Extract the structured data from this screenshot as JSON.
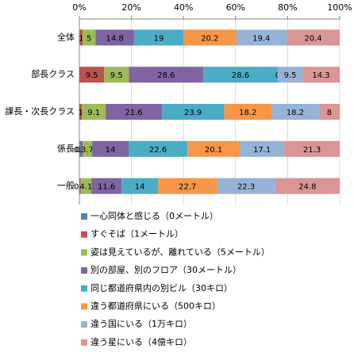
{
  "chart_data": {
    "type": "stacked_barh",
    "categories": [
      "全体",
      "部長クラス",
      "課長・次長クラス",
      "係長",
      "一般"
    ],
    "xlim": [
      0,
      100
    ],
    "xticks": [
      {
        "value": 0,
        "label": "0%"
      },
      {
        "value": 20,
        "label": "20%"
      },
      {
        "value": 40,
        "label": "40%"
      },
      {
        "value": 60,
        "label": "60%"
      },
      {
        "value": 80,
        "label": "80%"
      },
      {
        "value": 100,
        "label": "100%"
      }
    ],
    "grid": true,
    "series": [
      {
        "name": "一心同体と感じる（0メートル）",
        "color": "#4f81bd",
        "values": [
          0.2,
          0,
          0,
          0.6,
          0.1
        ],
        "value_labels": [
          null,
          null,
          null,
          "0.6",
          null
        ]
      },
      {
        "name": "すぐそば（1メートル）",
        "color": "#c0504d",
        "values": [
          1,
          9.5,
          1,
          0.6,
          0.4
        ],
        "value_labels": [
          "1",
          "9.5",
          "1",
          "0.6",
          "0.4"
        ]
      },
      {
        "name": "姿は見えているが、離れている（5メートル）",
        "color": "#9bbb59",
        "values": [
          5,
          9.5,
          9.1,
          3.7,
          4.1
        ],
        "value_labels": [
          "5",
          "9.5",
          "9.1",
          "3.7",
          "4.1"
        ]
      },
      {
        "name": "別の部屋、別のフロア（30メートル）",
        "color": "#8064a2",
        "values": [
          14.8,
          28.6,
          21.6,
          14,
          11.6
        ],
        "value_labels": [
          "14.8",
          "28.6",
          "21.6",
          "14",
          "11.6"
        ]
      },
      {
        "name": "同じ都道府県内の別ビル（30キロ）",
        "color": "#4bacc6",
        "values": [
          19,
          28.6,
          23.9,
          22.6,
          14
        ],
        "value_labels": [
          "19",
          "28.6",
          "23.9",
          "22.6",
          "14"
        ]
      },
      {
        "name": "違う都道府県にいる（500キロ）",
        "color": "#f79646",
        "values": [
          20.2,
          0,
          18.2,
          20.1,
          22.7
        ],
        "value_labels": [
          "20.2",
          "0",
          "18.2",
          "20.1",
          "22.7"
        ]
      },
      {
        "name": "違う国にいる（1万キロ）",
        "color": "#95b3d7",
        "values": [
          19.4,
          9.5,
          18.2,
          17.1,
          22.3
        ],
        "value_labels": [
          "19.4",
          "9.5",
          "18.2",
          "17.1",
          "22.3"
        ]
      },
      {
        "name": "違う星にいる（4億キロ）",
        "color": "#d99694",
        "values": [
          20.4,
          14.3,
          8,
          21.3,
          24.8
        ],
        "value_labels": [
          "20.4",
          "14.3",
          "8",
          "21.3",
          "24.8"
        ]
      }
    ]
  }
}
